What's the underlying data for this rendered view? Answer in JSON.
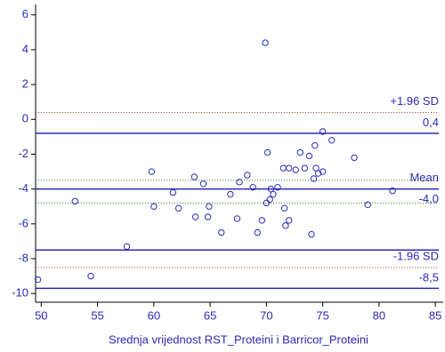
{
  "chart_data": {
    "type": "scatter",
    "xlabel": "Srednja vrijednost RST_Proteini i Barricor_Proteini",
    "x": [
      49.7,
      54.4,
      53,
      57.6,
      59.8,
      60,
      61.7,
      62.2,
      63.6,
      63.7,
      64.4,
      64.8,
      64.9,
      66,
      66.8,
      67.4,
      67.6,
      68.3,
      68.8,
      69.2,
      69.6,
      69.9,
      70,
      70.1,
      70.3,
      70.4,
      70.6,
      71,
      71.5,
      71.6,
      71.7,
      72,
      72,
      72.6,
      73,
      73.4,
      73.8,
      74,
      74.2,
      74.3,
      74.4,
      74.6,
      75,
      75,
      75.8,
      77.8,
      79,
      81.2
    ],
    "values": [
      -9.2,
      -9.0,
      -4.7,
      -7.3,
      -3.0,
      -5.0,
      -4.2,
      -5.1,
      -3.3,
      -5.6,
      -3.7,
      -5.6,
      -5.0,
      -6.5,
      -4.3,
      -5.7,
      -3.6,
      -3.2,
      -3.9,
      -6.5,
      -5.8,
      4.4,
      -4.8,
      -1.9,
      -4.6,
      -4.0,
      -4.3,
      -3.9,
      -2.8,
      -5.1,
      -6.1,
      -5.8,
      -2.8,
      -2.9,
      -1.9,
      -2.8,
      -2.1,
      -6.6,
      -3.4,
      -1.5,
      -2.8,
      -3.1,
      -0.7,
      -3.0,
      -1.2,
      -2.2,
      -4.9,
      -4.1
    ],
    "color": "#2a2ab8",
    "xlim": [
      49.5,
      85.7
    ],
    "xticks": [
      50,
      55,
      60,
      65,
      70,
      75,
      80,
      85
    ],
    "ylim": [
      -10.5,
      6.6
    ],
    "yticks": [
      -10,
      -8,
      -6,
      -4,
      -2,
      0,
      2,
      4,
      6
    ],
    "reference_lines": [
      {
        "value": 0.4,
        "color": "#b03030",
        "style": "dotted",
        "label": "+1.96 SD",
        "value_label": "0,4"
      },
      {
        "value": -4.0,
        "color": "#2a2ab8",
        "style": "solid",
        "label": "Mean",
        "value_label": "-4,0"
      },
      {
        "value": -8.5,
        "color": "#b03030",
        "style": "dotted",
        "label": "-1.96 SD",
        "value_label": "-8,5"
      },
      {
        "value": -0.8,
        "color": "#2a2ab8",
        "style": "solid"
      },
      {
        "value": -7.5,
        "color": "#2a2ab8",
        "style": "solid"
      },
      {
        "value": -9.7,
        "color": "#2a2ab8",
        "style": "solid"
      },
      {
        "value": -3.5,
        "color": "#2a7a2a",
        "style": "dotted"
      },
      {
        "value": -4.8,
        "color": "#2a7a2a",
        "style": "dotted"
      }
    ]
  }
}
